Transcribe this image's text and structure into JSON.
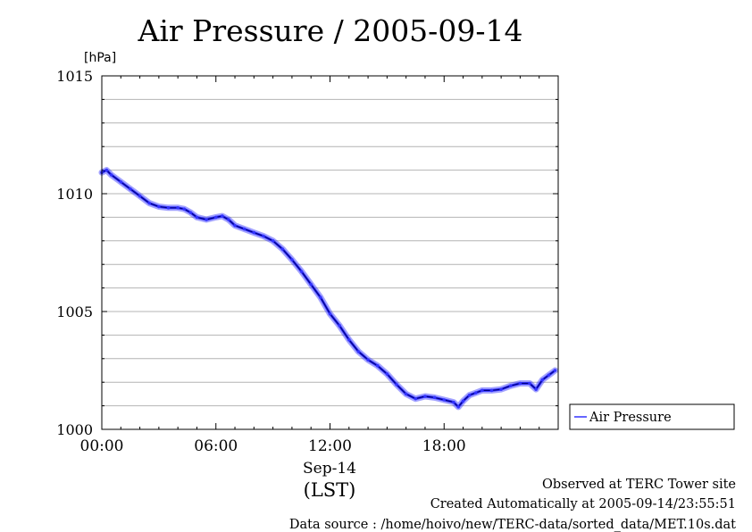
{
  "chart_data": {
    "type": "line",
    "title": "Air Pressure / 2005-09-14",
    "ylabel": "[hPa]",
    "xlabel": "(LST)",
    "x_date_label": "Sep-14",
    "ylim": [
      1000,
      1015
    ],
    "xlim": [
      "00:00",
      "24:00"
    ],
    "y_ticks": [
      "1000",
      "1005",
      "1010",
      "1015"
    ],
    "x_ticks": [
      "00:00",
      "06:00",
      "12:00",
      "18:00"
    ],
    "grid": true,
    "legend_placement": "right",
    "series": [
      {
        "name": "Air Pressure",
        "color": "#3333ff",
        "points": [
          {
            "x": "00:00",
            "y": 1010.9
          },
          {
            "x": "00:15",
            "y": 1011.0
          },
          {
            "x": "00:30",
            "y": 1010.8
          },
          {
            "x": "01:00",
            "y": 1010.5
          },
          {
            "x": "01:30",
            "y": 1010.2
          },
          {
            "x": "02:00",
            "y": 1009.9
          },
          {
            "x": "02:30",
            "y": 1009.6
          },
          {
            "x": "03:00",
            "y": 1009.45
          },
          {
            "x": "03:30",
            "y": 1009.4
          },
          {
            "x": "04:00",
            "y": 1009.4
          },
          {
            "x": "04:20",
            "y": 1009.35
          },
          {
            "x": "04:40",
            "y": 1009.2
          },
          {
            "x": "05:00",
            "y": 1009.0
          },
          {
            "x": "05:30",
            "y": 1008.9
          },
          {
            "x": "06:00",
            "y": 1009.0
          },
          {
            "x": "06:20",
            "y": 1009.05
          },
          {
            "x": "06:40",
            "y": 1008.9
          },
          {
            "x": "07:00",
            "y": 1008.65
          },
          {
            "x": "07:30",
            "y": 1008.5
          },
          {
            "x": "08:00",
            "y": 1008.35
          },
          {
            "x": "08:30",
            "y": 1008.2
          },
          {
            "x": "09:00",
            "y": 1008.0
          },
          {
            "x": "09:30",
            "y": 1007.65
          },
          {
            "x": "10:00",
            "y": 1007.2
          },
          {
            "x": "10:30",
            "y": 1006.7
          },
          {
            "x": "11:00",
            "y": 1006.15
          },
          {
            "x": "11:30",
            "y": 1005.6
          },
          {
            "x": "12:00",
            "y": 1004.9
          },
          {
            "x": "12:30",
            "y": 1004.4
          },
          {
            "x": "13:00",
            "y": 1003.8
          },
          {
            "x": "13:30",
            "y": 1003.3
          },
          {
            "x": "14:00",
            "y": 1002.95
          },
          {
            "x": "14:30",
            "y": 1002.7
          },
          {
            "x": "15:00",
            "y": 1002.35
          },
          {
            "x": "15:30",
            "y": 1001.9
          },
          {
            "x": "16:00",
            "y": 1001.5
          },
          {
            "x": "16:30",
            "y": 1001.3
          },
          {
            "x": "17:00",
            "y": 1001.4
          },
          {
            "x": "17:30",
            "y": 1001.35
          },
          {
            "x": "18:00",
            "y": 1001.25
          },
          {
            "x": "18:30",
            "y": 1001.15
          },
          {
            "x": "18:45",
            "y": 1000.95
          },
          {
            "x": "19:00",
            "y": 1001.2
          },
          {
            "x": "19:20",
            "y": 1001.45
          },
          {
            "x": "19:40",
            "y": 1001.55
          },
          {
            "x": "20:00",
            "y": 1001.65
          },
          {
            "x": "20:30",
            "y": 1001.65
          },
          {
            "x": "21:00",
            "y": 1001.7
          },
          {
            "x": "21:30",
            "y": 1001.85
          },
          {
            "x": "22:00",
            "y": 1001.95
          },
          {
            "x": "22:30",
            "y": 1001.95
          },
          {
            "x": "22:50",
            "y": 1001.7
          },
          {
            "x": "23:10",
            "y": 1002.1
          },
          {
            "x": "23:30",
            "y": 1002.3
          },
          {
            "x": "23:50",
            "y": 1002.5
          }
        ]
      }
    ]
  },
  "footer": {
    "observed": "Observed at TERC Tower site",
    "created": "Created Automatically at 2005-09-14/23:55:51",
    "source": "Data source : /home/hoivo/new/TERC-data/sorted_data/MET.10s.dat"
  },
  "colors": {
    "line": "#3333ff",
    "line_dark": "#000080",
    "grid": "#b4b4b4"
  }
}
